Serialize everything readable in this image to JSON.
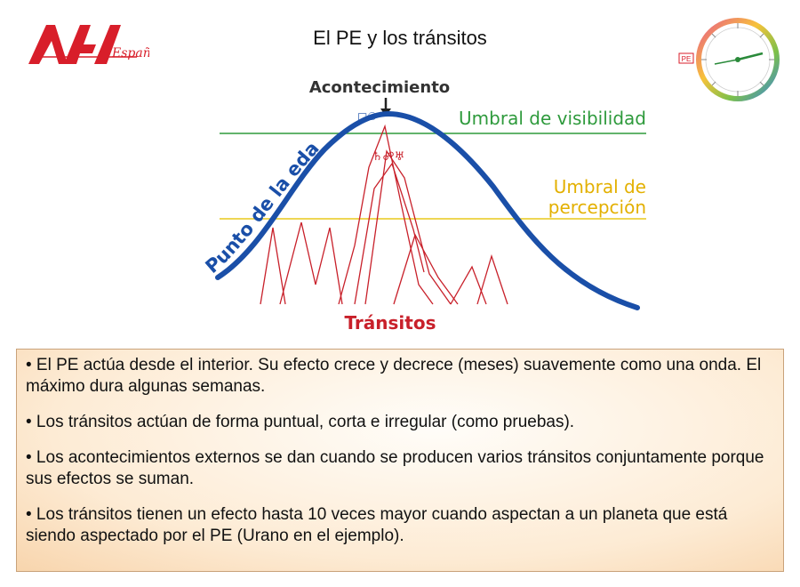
{
  "header": {
    "title": "El PE y los tránsitos",
    "logo_text": "España"
  },
  "clock_icon": {
    "label": "PE",
    "icon": "age-point-clock-icon"
  },
  "diagram": {
    "event_label": "Acontecimiento",
    "visibility_label": "Umbral de visibilidad",
    "perception_label_line1": "Umbral de",
    "perception_label_line2": "percepción",
    "age_point_label": "Punto de la edad",
    "transits_label": "Tránsitos",
    "planet_glyphs_top": "□☉",
    "planet_glyphs_mid": "♄☍♅",
    "colors": {
      "wave": "#1a4fa8",
      "visibility_line": "#2e9a3c",
      "perception_line": "#e8c81c",
      "transits": "#c8202a",
      "visibility_text": "#2e9a3c",
      "perception_text": "#e3b000",
      "axis_text": "#1a4fa8"
    }
  },
  "bullets": [
    "• El PE actúa desde el interior. Su efecto crece y decrece (meses) suavemente como una onda. El máximo dura algunas semanas.",
    "• Los tránsitos actúan de forma puntual, corta e irregular (como pruebas).",
    "• Los acontecimientos externos se dan cuando se producen varios tránsitos conjuntamente porque sus efectos se suman.",
    "• Los tránsitos tienen un efecto hasta 10 veces mayor cuando aspectan a un planeta que está siendo aspectado por el PE (Urano en el ejemplo)."
  ]
}
